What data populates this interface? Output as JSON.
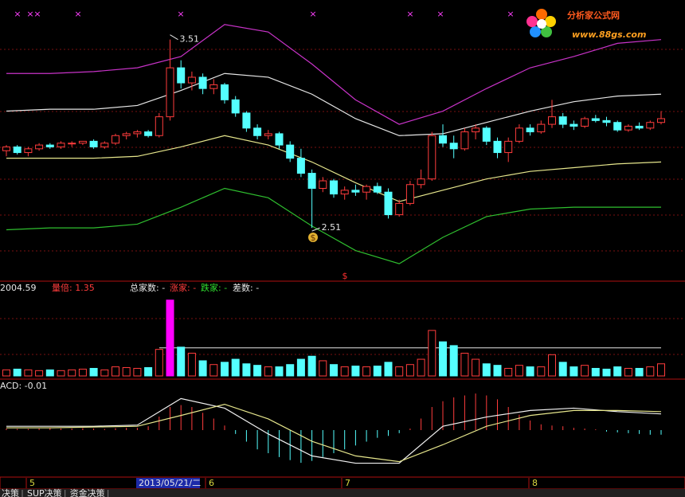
{
  "chart_data": {
    "type": "candlestick",
    "ylim": [
      2.24,
      3.72
    ],
    "open": [
      2.92,
      2.94,
      2.91,
      2.93,
      2.95,
      2.94,
      2.96,
      2.96,
      2.97,
      2.94,
      2.96,
      3.0,
      3.01,
      3.02,
      3.0,
      3.1,
      3.36,
      3.28,
      3.31,
      3.25,
      3.27,
      3.19,
      3.12,
      3.04,
      3.0,
      3.01,
      2.95,
      2.88,
      2.8,
      2.72,
      2.76,
      2.69,
      2.71,
      2.7,
      2.73,
      2.7,
      2.58,
      2.64,
      2.74,
      2.77,
      3.0,
      2.96,
      2.93,
      3.02,
      3.04,
      2.97,
      2.91,
      2.97,
      3.04,
      3.02,
      3.06,
      3.1,
      3.06,
      3.05,
      3.09,
      3.08,
      3.07,
      3.03,
      3.05,
      3.04,
      3.07
    ],
    "high": [
      2.95,
      2.95,
      2.94,
      2.96,
      2.96,
      2.97,
      2.97,
      2.97,
      2.98,
      2.97,
      3.01,
      3.02,
      3.03,
      3.03,
      3.12,
      3.51,
      3.4,
      3.34,
      3.33,
      3.3,
      3.28,
      3.21,
      3.13,
      3.06,
      3.03,
      3.02,
      2.97,
      2.93,
      2.82,
      2.78,
      2.77,
      2.73,
      2.74,
      2.74,
      2.75,
      2.72,
      2.66,
      2.76,
      2.82,
      3.02,
      3.06,
      3.0,
      3.04,
      3.06,
      3.05,
      2.99,
      2.99,
      3.06,
      3.06,
      3.08,
      3.19,
      3.12,
      3.08,
      3.1,
      3.11,
      3.1,
      3.08,
      3.06,
      3.07,
      3.08,
      3.13
    ],
    "low": [
      2.89,
      2.9,
      2.89,
      2.92,
      2.93,
      2.93,
      2.94,
      2.95,
      2.93,
      2.93,
      2.95,
      2.98,
      2.99,
      2.99,
      2.99,
      3.08,
      3.25,
      3.24,
      3.22,
      3.22,
      3.17,
      3.1,
      3.02,
      2.98,
      2.98,
      2.93,
      2.86,
      2.78,
      2.51,
      2.7,
      2.67,
      2.66,
      2.68,
      2.66,
      2.69,
      2.56,
      2.57,
      2.63,
      2.72,
      2.76,
      2.94,
      2.88,
      2.92,
      2.98,
      2.95,
      2.88,
      2.86,
      2.96,
      3.0,
      3.01,
      3.04,
      3.04,
      3.03,
      3.04,
      3.07,
      3.05,
      3.02,
      3.02,
      3.03,
      3.03,
      3.06
    ],
    "close": [
      2.94,
      2.91,
      2.93,
      2.95,
      2.94,
      2.96,
      2.96,
      2.97,
      2.94,
      2.96,
      3.0,
      3.01,
      3.02,
      3.0,
      3.1,
      3.36,
      3.28,
      3.31,
      3.25,
      3.27,
      3.19,
      3.12,
      3.04,
      3.0,
      3.01,
      2.95,
      2.88,
      2.8,
      2.72,
      2.76,
      2.69,
      2.71,
      2.7,
      2.73,
      2.7,
      2.58,
      2.64,
      2.74,
      2.77,
      3.0,
      2.96,
      2.93,
      3.02,
      3.04,
      2.97,
      2.91,
      2.97,
      3.04,
      3.02,
      3.06,
      3.1,
      3.06,
      3.05,
      3.09,
      3.08,
      3.07,
      3.03,
      3.05,
      3.04,
      3.07,
      3.09
    ],
    "up_color": "#ff3c3c",
    "down_color": "#54ffff",
    "high_label": 3.51,
    "low_label": 2.51,
    "bands": {
      "x": [
        0,
        4,
        8,
        12,
        16,
        20,
        24,
        28,
        32,
        36,
        40,
        44,
        48,
        52,
        56,
        60
      ],
      "series": [
        {
          "color": "#c833c8",
          "values": [
            3.33,
            3.33,
            3.34,
            3.36,
            3.42,
            3.59,
            3.55,
            3.38,
            3.19,
            3.06,
            3.13,
            3.25,
            3.36,
            3.42,
            3.49,
            3.51
          ]
        },
        {
          "color": "#e6e6e6",
          "values": [
            3.13,
            3.14,
            3.14,
            3.16,
            3.24,
            3.33,
            3.31,
            3.22,
            3.09,
            3.0,
            3.01,
            3.07,
            3.13,
            3.18,
            3.21,
            3.22
          ]
        },
        {
          "color": "#e6e68c",
          "values": [
            2.88,
            2.88,
            2.88,
            2.89,
            2.94,
            3.0,
            2.95,
            2.86,
            2.75,
            2.65,
            2.71,
            2.77,
            2.81,
            2.83,
            2.85,
            2.86
          ]
        },
        {
          "color": "#2fbf2f",
          "values": [
            2.5,
            2.51,
            2.51,
            2.53,
            2.62,
            2.72,
            2.67,
            2.52,
            2.39,
            2.32,
            2.46,
            2.57,
            2.61,
            2.62,
            2.62,
            2.62
          ]
        }
      ]
    },
    "volume": {
      "ylim": [
        0,
        105
      ],
      "ref_level": 37,
      "max_color": "#ff00ff",
      "header": [
        "2004.59",
        "量倍: 1.35",
        "总家数: -",
        "涨家: -",
        "跌家: -",
        "差数: -"
      ],
      "header_colors": [
        "#e6e6e6",
        "#ff3c3c",
        "#e6e6e6",
        "#ff3c3c",
        "#2fdf2f",
        "#e6e6e6"
      ],
      "values": [
        8,
        9,
        8,
        7,
        8,
        7,
        8,
        9,
        10,
        8,
        12,
        11,
        10,
        11,
        35,
        100,
        38,
        30,
        20,
        15,
        18,
        22,
        16,
        14,
        12,
        12,
        15,
        22,
        26,
        20,
        15,
        12,
        13,
        12,
        13,
        18,
        12,
        15,
        22,
        60,
        45,
        40,
        30,
        22,
        16,
        14,
        10,
        14,
        12,
        12,
        28,
        18,
        12,
        14,
        10,
        9,
        12,
        10,
        10,
        12,
        16
      ]
    },
    "macd": {
      "label": "ACD: -0.01",
      "ylim": [
        -0.12,
        0.12
      ],
      "values": [
        0.004,
        0.003,
        0.003,
        0.004,
        0.005,
        0.004,
        0.004,
        0.005,
        0.004,
        0.003,
        0.005,
        0.006,
        0.006,
        0.01,
        0.035,
        0.06,
        0.065,
        0.06,
        0.045,
        0.03,
        0.012,
        -0.01,
        -0.03,
        -0.05,
        -0.06,
        -0.07,
        -0.078,
        -0.085,
        -0.08,
        -0.07,
        -0.06,
        -0.05,
        -0.04,
        -0.03,
        -0.02,
        -0.015,
        -0.008,
        0.004,
        0.03,
        0.06,
        0.075,
        0.085,
        0.09,
        0.095,
        0.09,
        0.08,
        0.06,
        0.04,
        0.025,
        0.015,
        0.012,
        0.01,
        0.006,
        0.004,
        0.002,
        -0.004,
        -0.006,
        -0.008,
        -0.01,
        -0.012,
        -0.012
      ],
      "dif": {
        "color": "#f0f0f0",
        "values": [
          0.01,
          0.01,
          0.01,
          0.013,
          0.082,
          0.057,
          -0.01,
          -0.067,
          -0.086,
          -0.086,
          0.01,
          0.034,
          0.051,
          0.057,
          0.048,
          0.042
        ]
      },
      "dea": {
        "color": "#e6e68c",
        "values": [
          0.006,
          0.006,
          0.008,
          0.01,
          0.038,
          0.067,
          0.029,
          -0.029,
          -0.067,
          -0.082,
          -0.038,
          0.01,
          0.038,
          0.051,
          0.051,
          0.048
        ]
      }
    },
    "dates": [
      "5",
      "2013/05/21/二",
      "6",
      "7",
      "8"
    ]
  },
  "watermark": {
    "brand": "分析家公式网",
    "url": "www.88gs.com"
  },
  "tabs": [
    "决策",
    "SUP决策",
    "资金决策"
  ]
}
